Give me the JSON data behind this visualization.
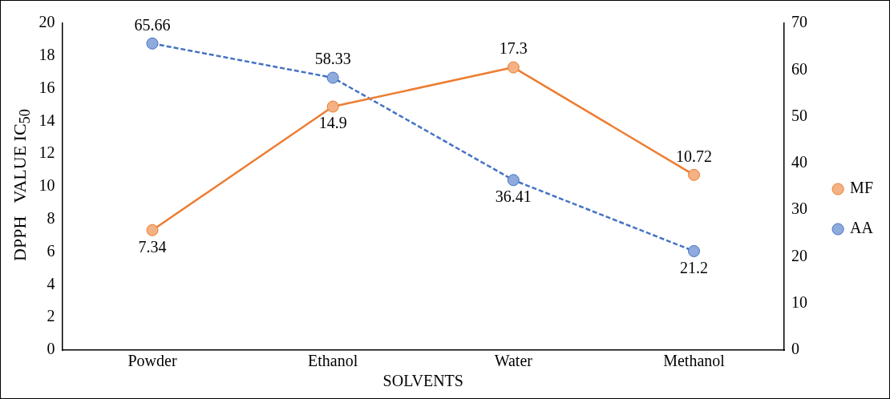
{
  "chart_data": {
    "type": "line",
    "xlabel": "SOLVENTS",
    "ylabel": "DPPH   VALUE IC$_{50}$",
    "categories": [
      "Powder",
      "Ethanol",
      "Water",
      "Methanol"
    ],
    "series": [
      {
        "name": "MF",
        "color": "#ed7d31",
        "values": [
          7.34,
          14.9,
          17.3,
          10.72
        ],
        "line_style": "solid"
      },
      {
        "name": "AA",
        "color": "#4472c4",
        "values": [
          65.66,
          58.33,
          36.41,
          21.2
        ],
        "axis": "y2",
        "line_style": "dashed"
      }
    ],
    "ylim": [
      0,
      20
    ],
    "yticks": [
      0,
      2,
      4,
      6,
      8,
      10,
      12,
      14,
      16,
      18,
      20
    ],
    "y2lim": [
      0,
      70
    ],
    "y2ticks": [
      0,
      10,
      20,
      30,
      40,
      50,
      60,
      70
    ],
    "marker": "circle",
    "data_labels": true,
    "grid": false,
    "legend": "right"
  }
}
